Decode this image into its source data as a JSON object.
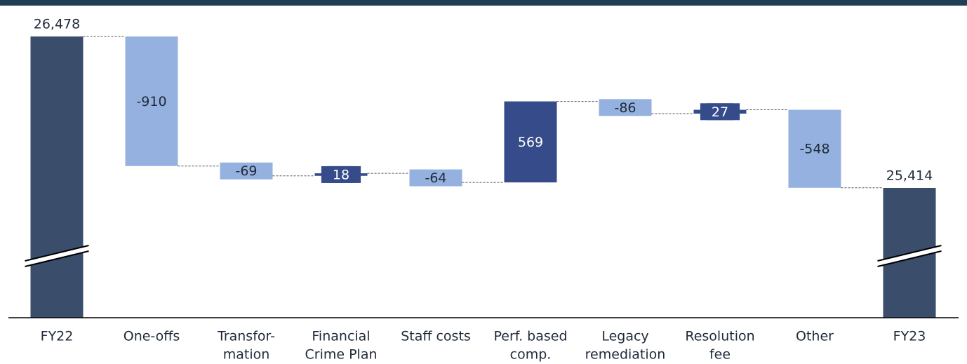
{
  "chart_data": {
    "type": "waterfall",
    "categories": [
      [
        "FY22"
      ],
      [
        "One-offs"
      ],
      [
        "Transfor-",
        "mation"
      ],
      [
        "Financial",
        "Crime Plan"
      ],
      [
        "Staff costs"
      ],
      [
        "Perf. based",
        "comp."
      ],
      [
        "Legacy",
        "remediation"
      ],
      [
        "Resolution",
        "fee"
      ],
      [
        "Other"
      ],
      [
        "FY23"
      ]
    ],
    "values": [
      26478,
      -910,
      -69,
      18,
      -64,
      569,
      -86,
      27,
      -548,
      25414
    ],
    "value_labels": [
      "26,478",
      "-910",
      "-69",
      "18",
      "-64",
      "569",
      "-86",
      "27",
      "-548",
      "25,414"
    ],
    "totals": [
      true,
      false,
      false,
      false,
      false,
      false,
      false,
      false,
      false,
      true
    ],
    "colors": {
      "total": "#3a4d6b",
      "decrease": "#95b1df",
      "increase": "#364b8a"
    }
  }
}
